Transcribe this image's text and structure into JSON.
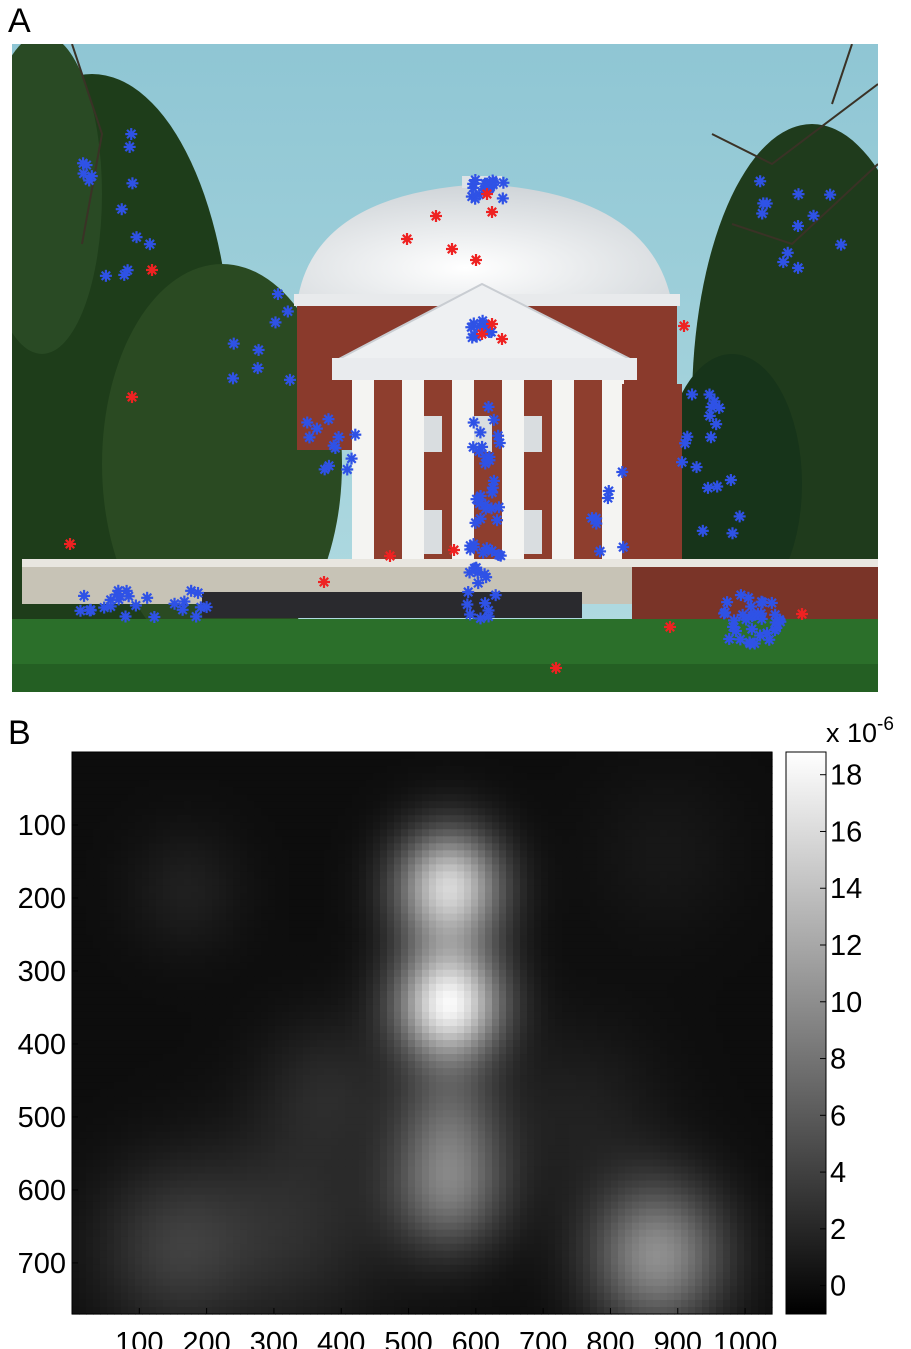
{
  "panels": {
    "a_label": "A",
    "b_label": "B"
  },
  "photo": {
    "marker_colors": {
      "blue": "#2f52e6",
      "red": "#ee2222"
    },
    "sky": "#9fd0da"
  },
  "chart_data": {
    "type": "heatmap",
    "title": "",
    "xlabel": "",
    "ylabel": "",
    "xlim": [
      0,
      1040
    ],
    "ylim": [
      770,
      0
    ],
    "xticks": [
      100,
      200,
      300,
      400,
      500,
      600,
      700,
      800,
      900,
      1000
    ],
    "yticks": [
      100,
      200,
      300,
      400,
      500,
      600,
      700
    ],
    "colormap": "gray",
    "colorbar": {
      "ticks": [
        0,
        2,
        4,
        6,
        8,
        10,
        12,
        14,
        16,
        18
      ],
      "range": [
        -1,
        18.8
      ],
      "exponent_label": "x 10",
      "exponent": "-6"
    },
    "blobs": [
      {
        "x": 560,
        "y": 185,
        "peak": 15.5,
        "spread": 55
      },
      {
        "x": 560,
        "y": 345,
        "peak": 18.0,
        "spread": 55
      },
      {
        "x": 560,
        "y": 500,
        "peak": 5.0,
        "spread": 55
      },
      {
        "x": 560,
        "y": 600,
        "peak": 8.0,
        "spread": 60
      },
      {
        "x": 870,
        "y": 690,
        "peak": 10.0,
        "spread": 70
      },
      {
        "x": 150,
        "y": 680,
        "peak": 3.5,
        "spread": 80
      },
      {
        "x": 380,
        "y": 460,
        "peak": 2.0,
        "spread": 70
      },
      {
        "x": 170,
        "y": 190,
        "peak": 1.4,
        "spread": 60
      },
      {
        "x": 330,
        "y": 650,
        "peak": 2.5,
        "spread": 100
      },
      {
        "x": 880,
        "y": 140,
        "peak": 0.8,
        "spread": 80
      },
      {
        "x": 750,
        "y": 500,
        "peak": 1.5,
        "spread": 90
      }
    ]
  }
}
